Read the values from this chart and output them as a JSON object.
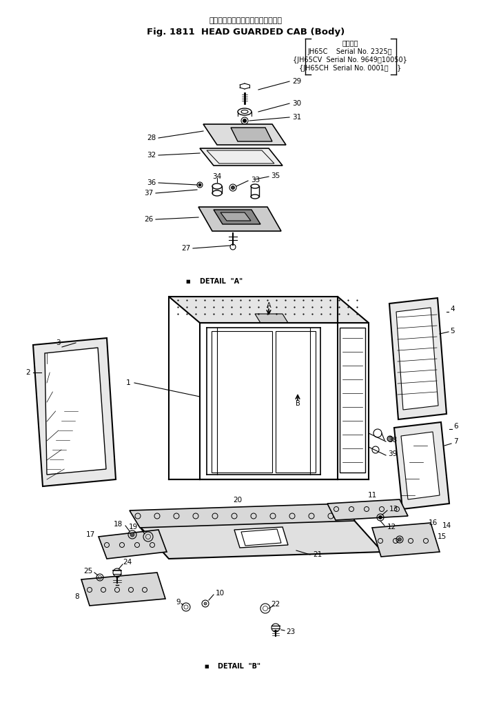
{
  "title_jp": "ヘッド　ガード　キャブ（ボデー）",
  "title_en": "Fig. 1811  HEAD GUARDED CAB (Body)",
  "serial_header": "適用号機",
  "serial_lines": [
    "JH65C    Serial No. 2325～",
    "{JH65CV  Serial No. 9649～10050}",
    "{JH65CH  Serial No. 0001～    }"
  ],
  "detail_a": "DETAIL  \"A\"",
  "detail_b": "DETAIL  \"B\"",
  "bg_color": "#ffffff",
  "line_color": "#000000"
}
